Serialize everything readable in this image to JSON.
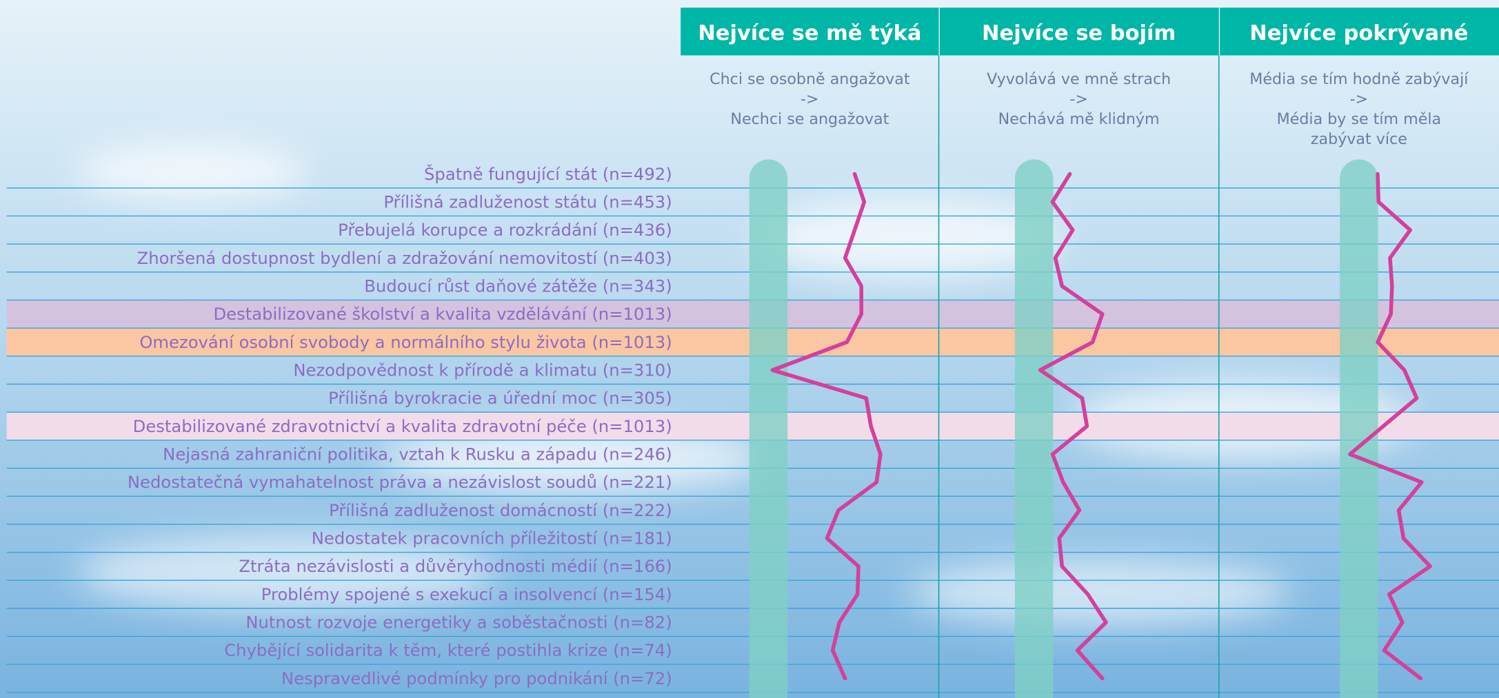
{
  "chart_data": {
    "type": "line",
    "categories": [
      "Špatně fungující stát  (n=492)",
      "Přílišná zadluženost státu (n=453)",
      "Přebujelá korupce a rozkrádání (n=436)",
      "Zhoršená dostupnost bydlení a zdražování nemovitostí (n=403)",
      "Budoucí růst daňové zátěže (n=343)",
      "Destabilizované školství a kvalita vzdělávání (n=1013)",
      "Omezování osobní svobody a normálního stylu života (n=1013)",
      "Nezodpovědnost k přírodě a klimatu (n=310)",
      "Přílišná byrokracie a úřední moc (n=305)",
      "Destabilizované zdravotnictví a kvalita zdravotní péče (n=1013)",
      "Nejasná zahraniční politika, vztah k Rusku a západu (n=246)",
      "Nedostatečná vymahatelnost práva a nezávislost soudů (n=221)",
      "Přílišná zadluženost domácností (n=222)",
      "Nedostatek pracovních příležitostí (n=181)",
      "Ztráta nezávislosti a důvěryhodnosti médií (n=166)",
      "Problémy spojené s exekucí a insolvencí (n=154)",
      "Nutnost rozvoje energetiky a soběstačnosti (n=82)",
      "Chybějící solidarita k těm, které postihla krize (n=74)",
      "Nespravedlivé podmínky pro podnikání (n=72)"
    ],
    "highlights": [
      {
        "index": 5,
        "color": "#d3c3de"
      },
      {
        "index": 6,
        "color": "#fbc7a3"
      },
      {
        "index": 9,
        "color": "#f3dcea"
      }
    ],
    "color": "#d4409b",
    "xlim": [
      0,
      100
    ],
    "series": [
      {
        "name": "Nejvíce se mě týká",
        "subtitle": [
          "Chci se osobně angažovat",
          "->",
          "Nechci se angažovat"
        ],
        "values": [
          67.4,
          71.1,
          67.4,
          63.7,
          70.0,
          70.0,
          64.4,
          35.6,
          71.9,
          73.7,
          77.4,
          75.9,
          61.1,
          56.7,
          68.9,
          68.5,
          61.5,
          58.9,
          63.7
        ]
      },
      {
        "name": "Nejvíce se bojím",
        "subtitle": [
          "Vyvolává ve mně strach",
          "->",
          "Nechává mě klidným"
        ],
        "values": [
          46.8,
          40.6,
          47.8,
          41.6,
          44.0,
          58.4,
          54.9,
          36.2,
          51.2,
          52.9,
          40.6,
          44.4,
          50.2,
          43.0,
          44.0,
          53.2,
          59.7,
          49.5,
          58.4
        ]
      },
      {
        "name": "Nejvíce pokrývané",
        "subtitle": [
          "Média se tím hodně zabývají",
          "->",
          "Média by se tím měla",
          "zabývat více"
        ],
        "values": [
          56.7,
          57.0,
          68.3,
          61.1,
          61.8,
          61.4,
          56.7,
          66.2,
          70.6,
          58.7,
          46.8,
          72.4,
          64.2,
          65.9,
          75.4,
          60.8,
          65.5,
          59.0,
          72.0
        ]
      }
    ]
  }
}
